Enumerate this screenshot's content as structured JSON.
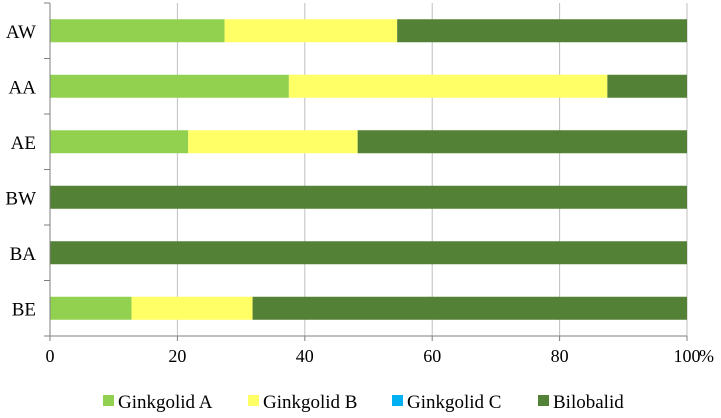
{
  "chart_data": {
    "type": "bar",
    "orientation": "horizontal",
    "stacked": "percent",
    "categories": [
      "AW",
      "AA",
      "AE",
      "BW",
      "BA",
      "BE"
    ],
    "series": [
      {
        "name": "Ginkgolid A",
        "color": "#92d050",
        "values": [
          27.4,
          37.5,
          21.7,
          0,
          0,
          12.8
        ]
      },
      {
        "name": "Ginkgolid B",
        "color": "#ffff66",
        "values": [
          27.1,
          50.0,
          26.6,
          0,
          0,
          19.0
        ]
      },
      {
        "name": "Ginkgolid C",
        "color": "#00b0f0",
        "values": [
          0,
          0,
          0,
          0,
          0,
          0
        ]
      },
      {
        "name": "Bilobalid",
        "color": "#538135",
        "values": [
          45.5,
          12.5,
          51.7,
          100,
          100,
          68.2
        ]
      }
    ],
    "xlim": [
      0,
      100
    ],
    "xticks": [
      "0",
      "20",
      "40",
      "60",
      "80",
      "100"
    ],
    "xunit": "%",
    "grid": "vertical",
    "legend_position": "bottom"
  }
}
